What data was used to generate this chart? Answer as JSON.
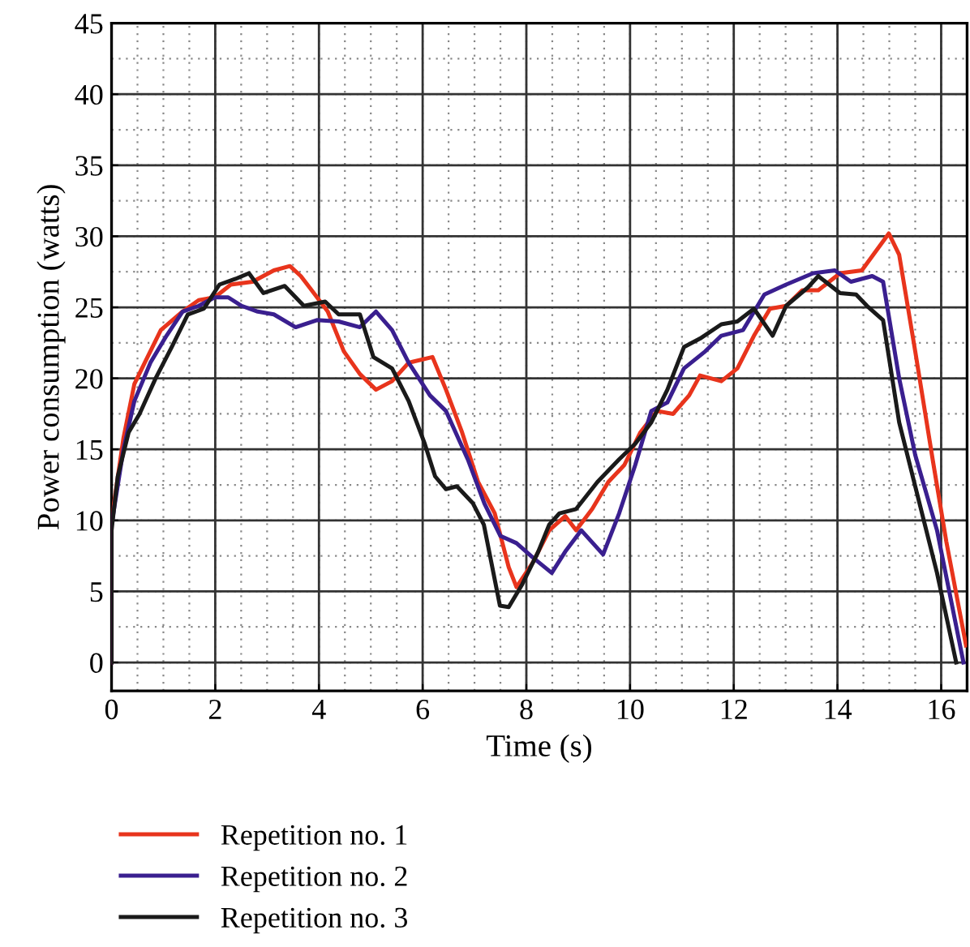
{
  "chart_data": {
    "type": "line",
    "xlabel": "Time (s)",
    "ylabel": "Power consumption (watts)",
    "xlim": [
      0,
      16.5
    ],
    "ylim": [
      -2,
      45
    ],
    "xticks": [
      0,
      2,
      4,
      6,
      8,
      10,
      12,
      14,
      16
    ],
    "yticks": [
      0,
      5,
      10,
      15,
      20,
      25,
      30,
      35,
      40,
      45
    ],
    "grid": true,
    "legend": "bottom",
    "marker": "none",
    "line_style": "solid",
    "series": [
      {
        "name": "Repetition no. 1",
        "color": "#e8341c",
        "x": [
          0,
          0,
          0.23,
          0.44,
          0.64,
          0.95,
          1.37,
          1.68,
          1.99,
          2.3,
          2.72,
          3.13,
          3.44,
          3.65,
          3.86,
          4.17,
          4.48,
          4.79,
          5.1,
          5.41,
          5.73,
          6.19,
          6.45,
          6.76,
          7.07,
          7.39,
          7.66,
          7.81,
          8.12,
          8.44,
          8.75,
          8.96,
          9.27,
          9.58,
          9.89,
          10.2,
          10.52,
          10.83,
          11.14,
          11.35,
          11.76,
          12.07,
          12.39,
          12.7,
          13.01,
          13.32,
          13.63,
          14.05,
          14.47,
          14.99,
          15.19,
          15.5,
          15.84,
          16.1,
          16.48
        ],
        "values": [
          0,
          10,
          15.8,
          19.6,
          21.1,
          23.4,
          24.7,
          25.5,
          25.7,
          26.6,
          26.8,
          27.6,
          27.9,
          27.2,
          26.2,
          24.7,
          21.9,
          20.3,
          19.2,
          19.8,
          21.1,
          21.5,
          19.2,
          16.2,
          12.7,
          10.5,
          6.7,
          5.3,
          7,
          9.3,
          10.3,
          9.3,
          10.8,
          12.7,
          13.9,
          16.2,
          17.7,
          17.5,
          18.8,
          20.2,
          19.8,
          20.7,
          23,
          24.9,
          25.1,
          26.2,
          26.2,
          27.4,
          27.6,
          30.2,
          28.7,
          21.9,
          14.2,
          8.5,
          1.2
        ]
      },
      {
        "name": "Repetition no. 2",
        "color": "#3a1f8f",
        "x": [
          0,
          0,
          0.23,
          0.44,
          0.75,
          1.06,
          1.37,
          1.68,
          1.99,
          2.25,
          2.51,
          2.82,
          3.13,
          3.55,
          3.96,
          4.38,
          4.79,
          5.1,
          5.41,
          5.73,
          6.14,
          6.45,
          6.87,
          7.19,
          7.5,
          7.81,
          8.12,
          8.49,
          8.75,
          9.06,
          9.48,
          9.79,
          10.1,
          10.41,
          10.72,
          11.04,
          11.45,
          11.76,
          12.18,
          12.59,
          13.01,
          13.53,
          13.95,
          14.26,
          14.67,
          14.88,
          15.19,
          15.5,
          15.92,
          16.43
        ],
        "values": [
          0,
          9.7,
          15,
          18.4,
          21.1,
          23,
          24.7,
          25.1,
          25.7,
          25.7,
          25.1,
          24.7,
          24.5,
          23.6,
          24.1,
          24,
          23.6,
          24.7,
          23.4,
          21.1,
          18.8,
          17.7,
          14.3,
          11.2,
          8.9,
          8.4,
          7.4,
          6.3,
          7.8,
          9.3,
          7.6,
          10.5,
          13.9,
          17.7,
          18.3,
          20.7,
          21.9,
          23,
          23.4,
          25.9,
          26.6,
          27.4,
          27.6,
          26.8,
          27.2,
          26.8,
          20,
          14.6,
          9.3,
          0
        ]
      },
      {
        "name": "Repetition no. 3",
        "color": "#1a1a1a",
        "x": [
          0,
          0,
          0.12,
          0.33,
          0.54,
          0.85,
          1.16,
          1.47,
          1.78,
          2.08,
          2.39,
          2.65,
          2.93,
          3.34,
          3.71,
          4.12,
          4.38,
          4.79,
          5.05,
          5.41,
          5.73,
          6.04,
          6.24,
          6.45,
          6.66,
          6.97,
          7.18,
          7.49,
          7.66,
          7.92,
          8.23,
          8.44,
          8.64,
          8.96,
          9.37,
          9.79,
          10.1,
          10.41,
          10.72,
          11.04,
          11.35,
          11.76,
          12.07,
          12.39,
          12.75,
          13.01,
          13.43,
          13.63,
          14.05,
          14.36,
          14.57,
          14.88,
          15.19,
          15.5,
          15.92,
          16.29
        ],
        "values": [
          0,
          9.3,
          13.1,
          16.2,
          17.5,
          20,
          22.2,
          24.5,
          24.9,
          26.6,
          27,
          27.4,
          26,
          26.5,
          25.1,
          25.4,
          24.5,
          24.5,
          21.5,
          20.7,
          18.4,
          15.4,
          13.1,
          12.2,
          12.4,
          11.2,
          9.7,
          4,
          3.9,
          5.5,
          7.8,
          9.7,
          10.5,
          10.8,
          12.7,
          14.3,
          15.4,
          16.9,
          19.2,
          22.2,
          22.8,
          23.8,
          24,
          24.9,
          23,
          25.1,
          26.4,
          27.2,
          26,
          25.9,
          25.1,
          24.1,
          16.9,
          12.4,
          6.3,
          0
        ]
      }
    ]
  }
}
